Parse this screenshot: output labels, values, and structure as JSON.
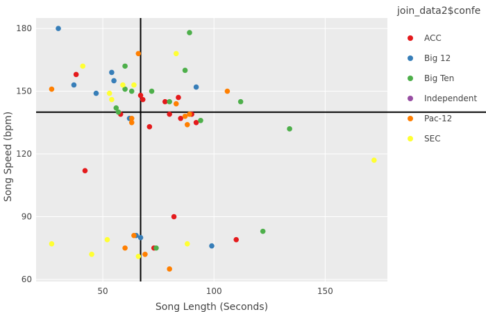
{
  "chart_data": {
    "type": "scatter",
    "xlabel": "Song Length (Seconds)",
    "ylabel": "Song Speed (bpm)",
    "xlim": [
      20,
      178
    ],
    "ylim": [
      59,
      185
    ],
    "x_ticks": [
      50,
      100,
      150
    ],
    "y_ticks": [
      60,
      90,
      120,
      150,
      180
    ],
    "grid": true,
    "background": "#ebebeb",
    "legend_title": "join_data2$confe",
    "legend_position": "right",
    "reference_lines": {
      "vertical_x": 67,
      "horizontal_y": 140
    },
    "series": [
      {
        "name": "ACC",
        "color": "#e41a1c",
        "points": [
          [
            38,
            158
          ],
          [
            42,
            112
          ],
          [
            58,
            139
          ],
          [
            67,
            148
          ],
          [
            68,
            146
          ],
          [
            71,
            133
          ],
          [
            78,
            145
          ],
          [
            80,
            139
          ],
          [
            82,
            90
          ],
          [
            84,
            147
          ],
          [
            85,
            137
          ],
          [
            90,
            139
          ],
          [
            92,
            135
          ],
          [
            110,
            79
          ],
          [
            73,
            75
          ]
        ]
      },
      {
        "name": "Big 12",
        "color": "#377eb8",
        "points": [
          [
            30,
            180
          ],
          [
            37,
            153
          ],
          [
            47,
            149
          ],
          [
            54,
            159
          ],
          [
            55,
            155
          ],
          [
            62,
            137
          ],
          [
            67,
            80
          ],
          [
            65,
            81
          ],
          [
            92,
            152
          ],
          [
            99,
            76
          ]
        ]
      },
      {
        "name": "Big Ten",
        "color": "#4daf4a",
        "points": [
          [
            57,
            140
          ],
          [
            56,
            142
          ],
          [
            60,
            151
          ],
          [
            60,
            162
          ],
          [
            63,
            150
          ],
          [
            72,
            150
          ],
          [
            80,
            145
          ],
          [
            87,
            160
          ],
          [
            89,
            178
          ],
          [
            94,
            136
          ],
          [
            112,
            145
          ],
          [
            122,
            83
          ],
          [
            134,
            132
          ],
          [
            74,
            75
          ]
        ]
      },
      {
        "name": "Independent",
        "color": "#984ea3",
        "points": []
      },
      {
        "name": "Pac-12",
        "color": "#ff7f00",
        "points": [
          [
            27,
            151
          ],
          [
            63,
            137
          ],
          [
            63,
            135
          ],
          [
            66,
            168
          ],
          [
            60,
            75
          ],
          [
            64,
            81
          ],
          [
            69,
            72
          ],
          [
            80,
            65
          ],
          [
            83,
            144
          ],
          [
            87,
            138
          ],
          [
            88,
            134
          ],
          [
            89,
            139
          ],
          [
            106,
            150
          ]
        ]
      },
      {
        "name": "SEC",
        "color": "#ffff33",
        "points": [
          [
            27,
            77
          ],
          [
            41,
            162
          ],
          [
            45,
            72
          ],
          [
            52,
            79
          ],
          [
            53,
            149
          ],
          [
            54,
            146
          ],
          [
            59,
            153
          ],
          [
            64,
            153
          ],
          [
            66,
            71
          ],
          [
            83,
            168
          ],
          [
            88,
            77
          ],
          [
            172,
            117
          ]
        ]
      }
    ]
  }
}
